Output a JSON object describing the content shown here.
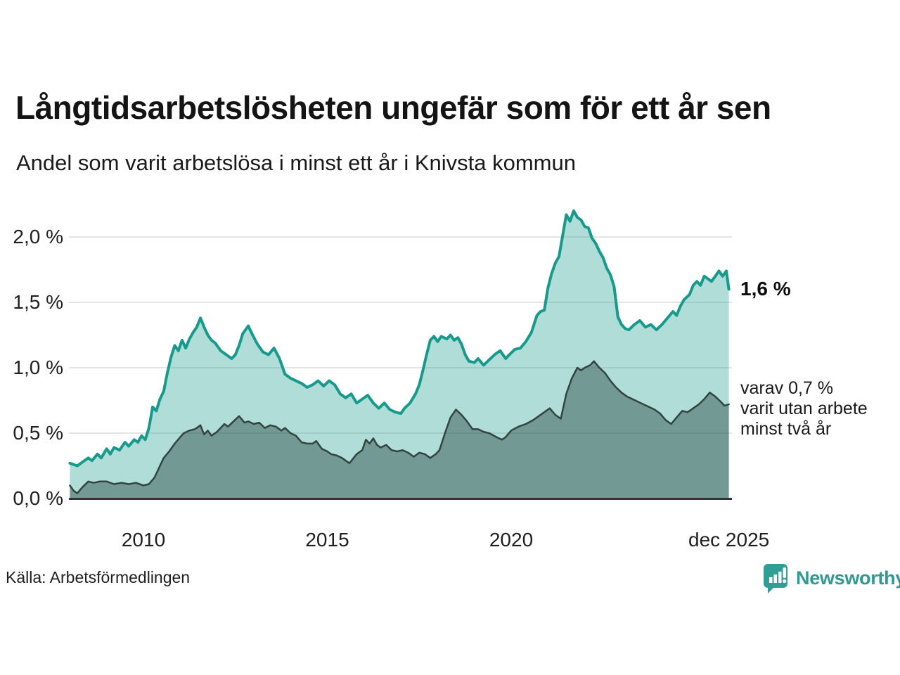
{
  "header": {
    "title": "Långtidsarbetslösheten ungefär som för ett år sen",
    "subtitle": "Andel som varit arbetslösa i minst ett år i Knivsta kommun"
  },
  "chart_data": {
    "type": "area",
    "title": "Långtidsarbetslösheten ungefär som för ett år sen",
    "subtitle": "Andel som varit arbetslösa i minst ett år i Knivsta kommun",
    "region": "Knivsta kommun",
    "x_unit": "decimal_year",
    "x_range": [
      2008.0,
      2025.92
    ],
    "ylim": [
      0,
      2.3
    ],
    "grid": true,
    "grid_color": "#dcdcdc",
    "axis_color": "#333333",
    "y_axis": {
      "ticks": [
        {
          "value": 0.0,
          "label": "0,0 %"
        },
        {
          "value": 0.5,
          "label": "0,5 %"
        },
        {
          "value": 1.0,
          "label": "1,0 %"
        },
        {
          "value": 1.5,
          "label": "1,5 %"
        },
        {
          "value": 2.0,
          "label": "2,0 %"
        }
      ]
    },
    "x_axis": {
      "ticks": [
        {
          "value": 2010,
          "label": "2010"
        },
        {
          "value": 2015,
          "label": "2015"
        },
        {
          "value": 2020,
          "label": "2020"
        },
        {
          "value": 2025.92,
          "label": "dec 2025"
        }
      ]
    },
    "series": [
      {
        "name": "Andel som varit arbetslösa i minst ett år",
        "latest_value_pct": 1.6,
        "color": "#179a8c",
        "fill": "rgba(23,154,140,0.34)",
        "line_width": 4,
        "points": [
          [
            2008.0,
            0.27
          ],
          [
            2008.1,
            0.26
          ],
          [
            2008.2,
            0.25
          ],
          [
            2008.35,
            0.28
          ],
          [
            2008.5,
            0.31
          ],
          [
            2008.6,
            0.29
          ],
          [
            2008.75,
            0.34
          ],
          [
            2008.85,
            0.31
          ],
          [
            2009.0,
            0.38
          ],
          [
            2009.1,
            0.34
          ],
          [
            2009.2,
            0.39
          ],
          [
            2009.35,
            0.37
          ],
          [
            2009.5,
            0.43
          ],
          [
            2009.6,
            0.4
          ],
          [
            2009.75,
            0.45
          ],
          [
            2009.85,
            0.43
          ],
          [
            2009.95,
            0.48
          ],
          [
            2010.05,
            0.45
          ],
          [
            2010.15,
            0.54
          ],
          [
            2010.25,
            0.7
          ],
          [
            2010.35,
            0.67
          ],
          [
            2010.45,
            0.76
          ],
          [
            2010.55,
            0.82
          ],
          [
            2010.65,
            0.96
          ],
          [
            2010.75,
            1.08
          ],
          [
            2010.85,
            1.17
          ],
          [
            2010.95,
            1.13
          ],
          [
            2011.05,
            1.21
          ],
          [
            2011.15,
            1.15
          ],
          [
            2011.25,
            1.22
          ],
          [
            2011.35,
            1.27
          ],
          [
            2011.45,
            1.31
          ],
          [
            2011.55,
            1.38
          ],
          [
            2011.65,
            1.31
          ],
          [
            2011.75,
            1.25
          ],
          [
            2011.85,
            1.21
          ],
          [
            2011.95,
            1.19
          ],
          [
            2012.1,
            1.13
          ],
          [
            2012.25,
            1.1
          ],
          [
            2012.4,
            1.07
          ],
          [
            2012.5,
            1.1
          ],
          [
            2012.6,
            1.17
          ],
          [
            2012.7,
            1.26
          ],
          [
            2012.85,
            1.32
          ],
          [
            2012.95,
            1.26
          ],
          [
            2013.1,
            1.18
          ],
          [
            2013.25,
            1.12
          ],
          [
            2013.4,
            1.1
          ],
          [
            2013.55,
            1.15
          ],
          [
            2013.7,
            1.07
          ],
          [
            2013.85,
            0.95
          ],
          [
            2014.0,
            0.92
          ],
          [
            2014.15,
            0.9
          ],
          [
            2014.3,
            0.88
          ],
          [
            2014.45,
            0.85
          ],
          [
            2014.6,
            0.87
          ],
          [
            2014.75,
            0.9
          ],
          [
            2014.9,
            0.86
          ],
          [
            2015.05,
            0.9
          ],
          [
            2015.2,
            0.87
          ],
          [
            2015.35,
            0.8
          ],
          [
            2015.5,
            0.77
          ],
          [
            2015.65,
            0.8
          ],
          [
            2015.8,
            0.73
          ],
          [
            2015.95,
            0.76
          ],
          [
            2016.1,
            0.79
          ],
          [
            2016.25,
            0.73
          ],
          [
            2016.4,
            0.69
          ],
          [
            2016.55,
            0.73
          ],
          [
            2016.7,
            0.68
          ],
          [
            2016.85,
            0.66
          ],
          [
            2017.0,
            0.65
          ],
          [
            2017.1,
            0.69
          ],
          [
            2017.25,
            0.73
          ],
          [
            2017.4,
            0.8
          ],
          [
            2017.5,
            0.87
          ],
          [
            2017.6,
            0.98
          ],
          [
            2017.7,
            1.1
          ],
          [
            2017.8,
            1.21
          ],
          [
            2017.9,
            1.24
          ],
          [
            2018.0,
            1.2
          ],
          [
            2018.1,
            1.24
          ],
          [
            2018.25,
            1.22
          ],
          [
            2018.35,
            1.25
          ],
          [
            2018.45,
            1.21
          ],
          [
            2018.55,
            1.23
          ],
          [
            2018.65,
            1.18
          ],
          [
            2018.75,
            1.1
          ],
          [
            2018.85,
            1.05
          ],
          [
            2019.0,
            1.04
          ],
          [
            2019.1,
            1.07
          ],
          [
            2019.25,
            1.02
          ],
          [
            2019.4,
            1.06
          ],
          [
            2019.55,
            1.1
          ],
          [
            2019.7,
            1.13
          ],
          [
            2019.85,
            1.07
          ],
          [
            2019.95,
            1.1
          ],
          [
            2020.1,
            1.14
          ],
          [
            2020.25,
            1.15
          ],
          [
            2020.4,
            1.2
          ],
          [
            2020.55,
            1.27
          ],
          [
            2020.7,
            1.4
          ],
          [
            2020.8,
            1.43
          ],
          [
            2020.9,
            1.44
          ],
          [
            2021.0,
            1.61
          ],
          [
            2021.1,
            1.72
          ],
          [
            2021.2,
            1.8
          ],
          [
            2021.3,
            1.85
          ],
          [
            2021.4,
            2.01
          ],
          [
            2021.5,
            2.17
          ],
          [
            2021.6,
            2.12
          ],
          [
            2021.7,
            2.2
          ],
          [
            2021.8,
            2.15
          ],
          [
            2021.9,
            2.13
          ],
          [
            2022.0,
            2.08
          ],
          [
            2022.1,
            2.07
          ],
          [
            2022.2,
            1.99
          ],
          [
            2022.3,
            1.95
          ],
          [
            2022.4,
            1.89
          ],
          [
            2022.5,
            1.84
          ],
          [
            2022.6,
            1.76
          ],
          [
            2022.7,
            1.71
          ],
          [
            2022.8,
            1.62
          ],
          [
            2022.9,
            1.39
          ],
          [
            2023.0,
            1.33
          ],
          [
            2023.1,
            1.3
          ],
          [
            2023.2,
            1.29
          ],
          [
            2023.35,
            1.33
          ],
          [
            2023.5,
            1.36
          ],
          [
            2023.65,
            1.31
          ],
          [
            2023.8,
            1.33
          ],
          [
            2023.95,
            1.29
          ],
          [
            2024.1,
            1.33
          ],
          [
            2024.25,
            1.38
          ],
          [
            2024.4,
            1.43
          ],
          [
            2024.5,
            1.4
          ],
          [
            2024.6,
            1.47
          ],
          [
            2024.7,
            1.52
          ],
          [
            2024.85,
            1.56
          ],
          [
            2024.95,
            1.63
          ],
          [
            2025.05,
            1.66
          ],
          [
            2025.15,
            1.63
          ],
          [
            2025.25,
            1.7
          ],
          [
            2025.35,
            1.68
          ],
          [
            2025.45,
            1.66
          ],
          [
            2025.55,
            1.7
          ],
          [
            2025.65,
            1.74
          ],
          [
            2025.75,
            1.7
          ],
          [
            2025.85,
            1.74
          ],
          [
            2025.92,
            1.6
          ]
        ]
      },
      {
        "name": "varav utan arbete minst två år",
        "latest_value_pct": 0.7,
        "color": "#33443f",
        "fill": "rgba(40,70,64,0.45)",
        "line_width": 2.5,
        "points": [
          [
            2008.0,
            0.1
          ],
          [
            2008.1,
            0.06
          ],
          [
            2008.2,
            0.04
          ],
          [
            2008.35,
            0.09
          ],
          [
            2008.5,
            0.13
          ],
          [
            2008.65,
            0.12
          ],
          [
            2008.8,
            0.13
          ],
          [
            2009.0,
            0.13
          ],
          [
            2009.2,
            0.11
          ],
          [
            2009.4,
            0.12
          ],
          [
            2009.6,
            0.11
          ],
          [
            2009.8,
            0.12
          ],
          [
            2010.0,
            0.1
          ],
          [
            2010.15,
            0.11
          ],
          [
            2010.3,
            0.16
          ],
          [
            2010.45,
            0.25
          ],
          [
            2010.55,
            0.31
          ],
          [
            2010.7,
            0.36
          ],
          [
            2010.85,
            0.42
          ],
          [
            2011.0,
            0.47
          ],
          [
            2011.1,
            0.5
          ],
          [
            2011.25,
            0.52
          ],
          [
            2011.4,
            0.53
          ],
          [
            2011.55,
            0.56
          ],
          [
            2011.65,
            0.49
          ],
          [
            2011.75,
            0.52
          ],
          [
            2011.85,
            0.48
          ],
          [
            2012.0,
            0.51
          ],
          [
            2012.1,
            0.54
          ],
          [
            2012.2,
            0.57
          ],
          [
            2012.3,
            0.55
          ],
          [
            2012.45,
            0.59
          ],
          [
            2012.6,
            0.63
          ],
          [
            2012.75,
            0.58
          ],
          [
            2012.85,
            0.59
          ],
          [
            2013.0,
            0.57
          ],
          [
            2013.15,
            0.58
          ],
          [
            2013.3,
            0.54
          ],
          [
            2013.45,
            0.56
          ],
          [
            2013.6,
            0.55
          ],
          [
            2013.75,
            0.52
          ],
          [
            2013.85,
            0.54
          ],
          [
            2014.0,
            0.5
          ],
          [
            2014.15,
            0.48
          ],
          [
            2014.3,
            0.43
          ],
          [
            2014.45,
            0.42
          ],
          [
            2014.6,
            0.42
          ],
          [
            2014.7,
            0.44
          ],
          [
            2014.85,
            0.38
          ],
          [
            2015.0,
            0.36
          ],
          [
            2015.1,
            0.34
          ],
          [
            2015.25,
            0.33
          ],
          [
            2015.4,
            0.31
          ],
          [
            2015.6,
            0.27
          ],
          [
            2015.8,
            0.34
          ],
          [
            2015.95,
            0.37
          ],
          [
            2016.05,
            0.45
          ],
          [
            2016.15,
            0.42
          ],
          [
            2016.25,
            0.46
          ],
          [
            2016.35,
            0.41
          ],
          [
            2016.45,
            0.39
          ],
          [
            2016.6,
            0.41
          ],
          [
            2016.75,
            0.37
          ],
          [
            2016.9,
            0.36
          ],
          [
            2017.05,
            0.37
          ],
          [
            2017.2,
            0.35
          ],
          [
            2017.35,
            0.32
          ],
          [
            2017.5,
            0.35
          ],
          [
            2017.65,
            0.34
          ],
          [
            2017.8,
            0.31
          ],
          [
            2017.95,
            0.34
          ],
          [
            2018.05,
            0.37
          ],
          [
            2018.2,
            0.5
          ],
          [
            2018.35,
            0.62
          ],
          [
            2018.5,
            0.68
          ],
          [
            2018.65,
            0.64
          ],
          [
            2018.8,
            0.59
          ],
          [
            2018.95,
            0.53
          ],
          [
            2019.1,
            0.53
          ],
          [
            2019.25,
            0.51
          ],
          [
            2019.4,
            0.5
          ],
          [
            2019.6,
            0.47
          ],
          [
            2019.75,
            0.45
          ],
          [
            2019.85,
            0.47
          ],
          [
            2020.0,
            0.52
          ],
          [
            2020.2,
            0.55
          ],
          [
            2020.4,
            0.57
          ],
          [
            2020.6,
            0.6
          ],
          [
            2020.75,
            0.63
          ],
          [
            2020.9,
            0.66
          ],
          [
            2021.05,
            0.69
          ],
          [
            2021.2,
            0.64
          ],
          [
            2021.35,
            0.61
          ],
          [
            2021.5,
            0.8
          ],
          [
            2021.65,
            0.92
          ],
          [
            2021.8,
            1.0
          ],
          [
            2021.9,
            0.98
          ],
          [
            2022.0,
            1.0
          ],
          [
            2022.15,
            1.02
          ],
          [
            2022.25,
            1.05
          ],
          [
            2022.4,
            1.0
          ],
          [
            2022.55,
            0.96
          ],
          [
            2022.7,
            0.9
          ],
          [
            2022.85,
            0.85
          ],
          [
            2023.0,
            0.81
          ],
          [
            2023.15,
            0.78
          ],
          [
            2023.3,
            0.76
          ],
          [
            2023.45,
            0.74
          ],
          [
            2023.6,
            0.72
          ],
          [
            2023.75,
            0.7
          ],
          [
            2023.9,
            0.68
          ],
          [
            2024.05,
            0.65
          ],
          [
            2024.2,
            0.6
          ],
          [
            2024.35,
            0.57
          ],
          [
            2024.5,
            0.62
          ],
          [
            2024.65,
            0.67
          ],
          [
            2024.8,
            0.66
          ],
          [
            2024.95,
            0.69
          ],
          [
            2025.1,
            0.72
          ],
          [
            2025.25,
            0.76
          ],
          [
            2025.4,
            0.81
          ],
          [
            2025.55,
            0.78
          ],
          [
            2025.7,
            0.74
          ],
          [
            2025.8,
            0.71
          ],
          [
            2025.92,
            0.72
          ]
        ]
      }
    ],
    "annotations": {
      "latest": "1,6 %",
      "secondary_lines": [
        "varav 0,7 %",
        "varit utan arbete",
        "minst två år"
      ]
    }
  },
  "footer": {
    "source": "Källa: Arbetsförmedlingen",
    "brand": "Newsworthy",
    "brand_color": "#2e9a91"
  }
}
